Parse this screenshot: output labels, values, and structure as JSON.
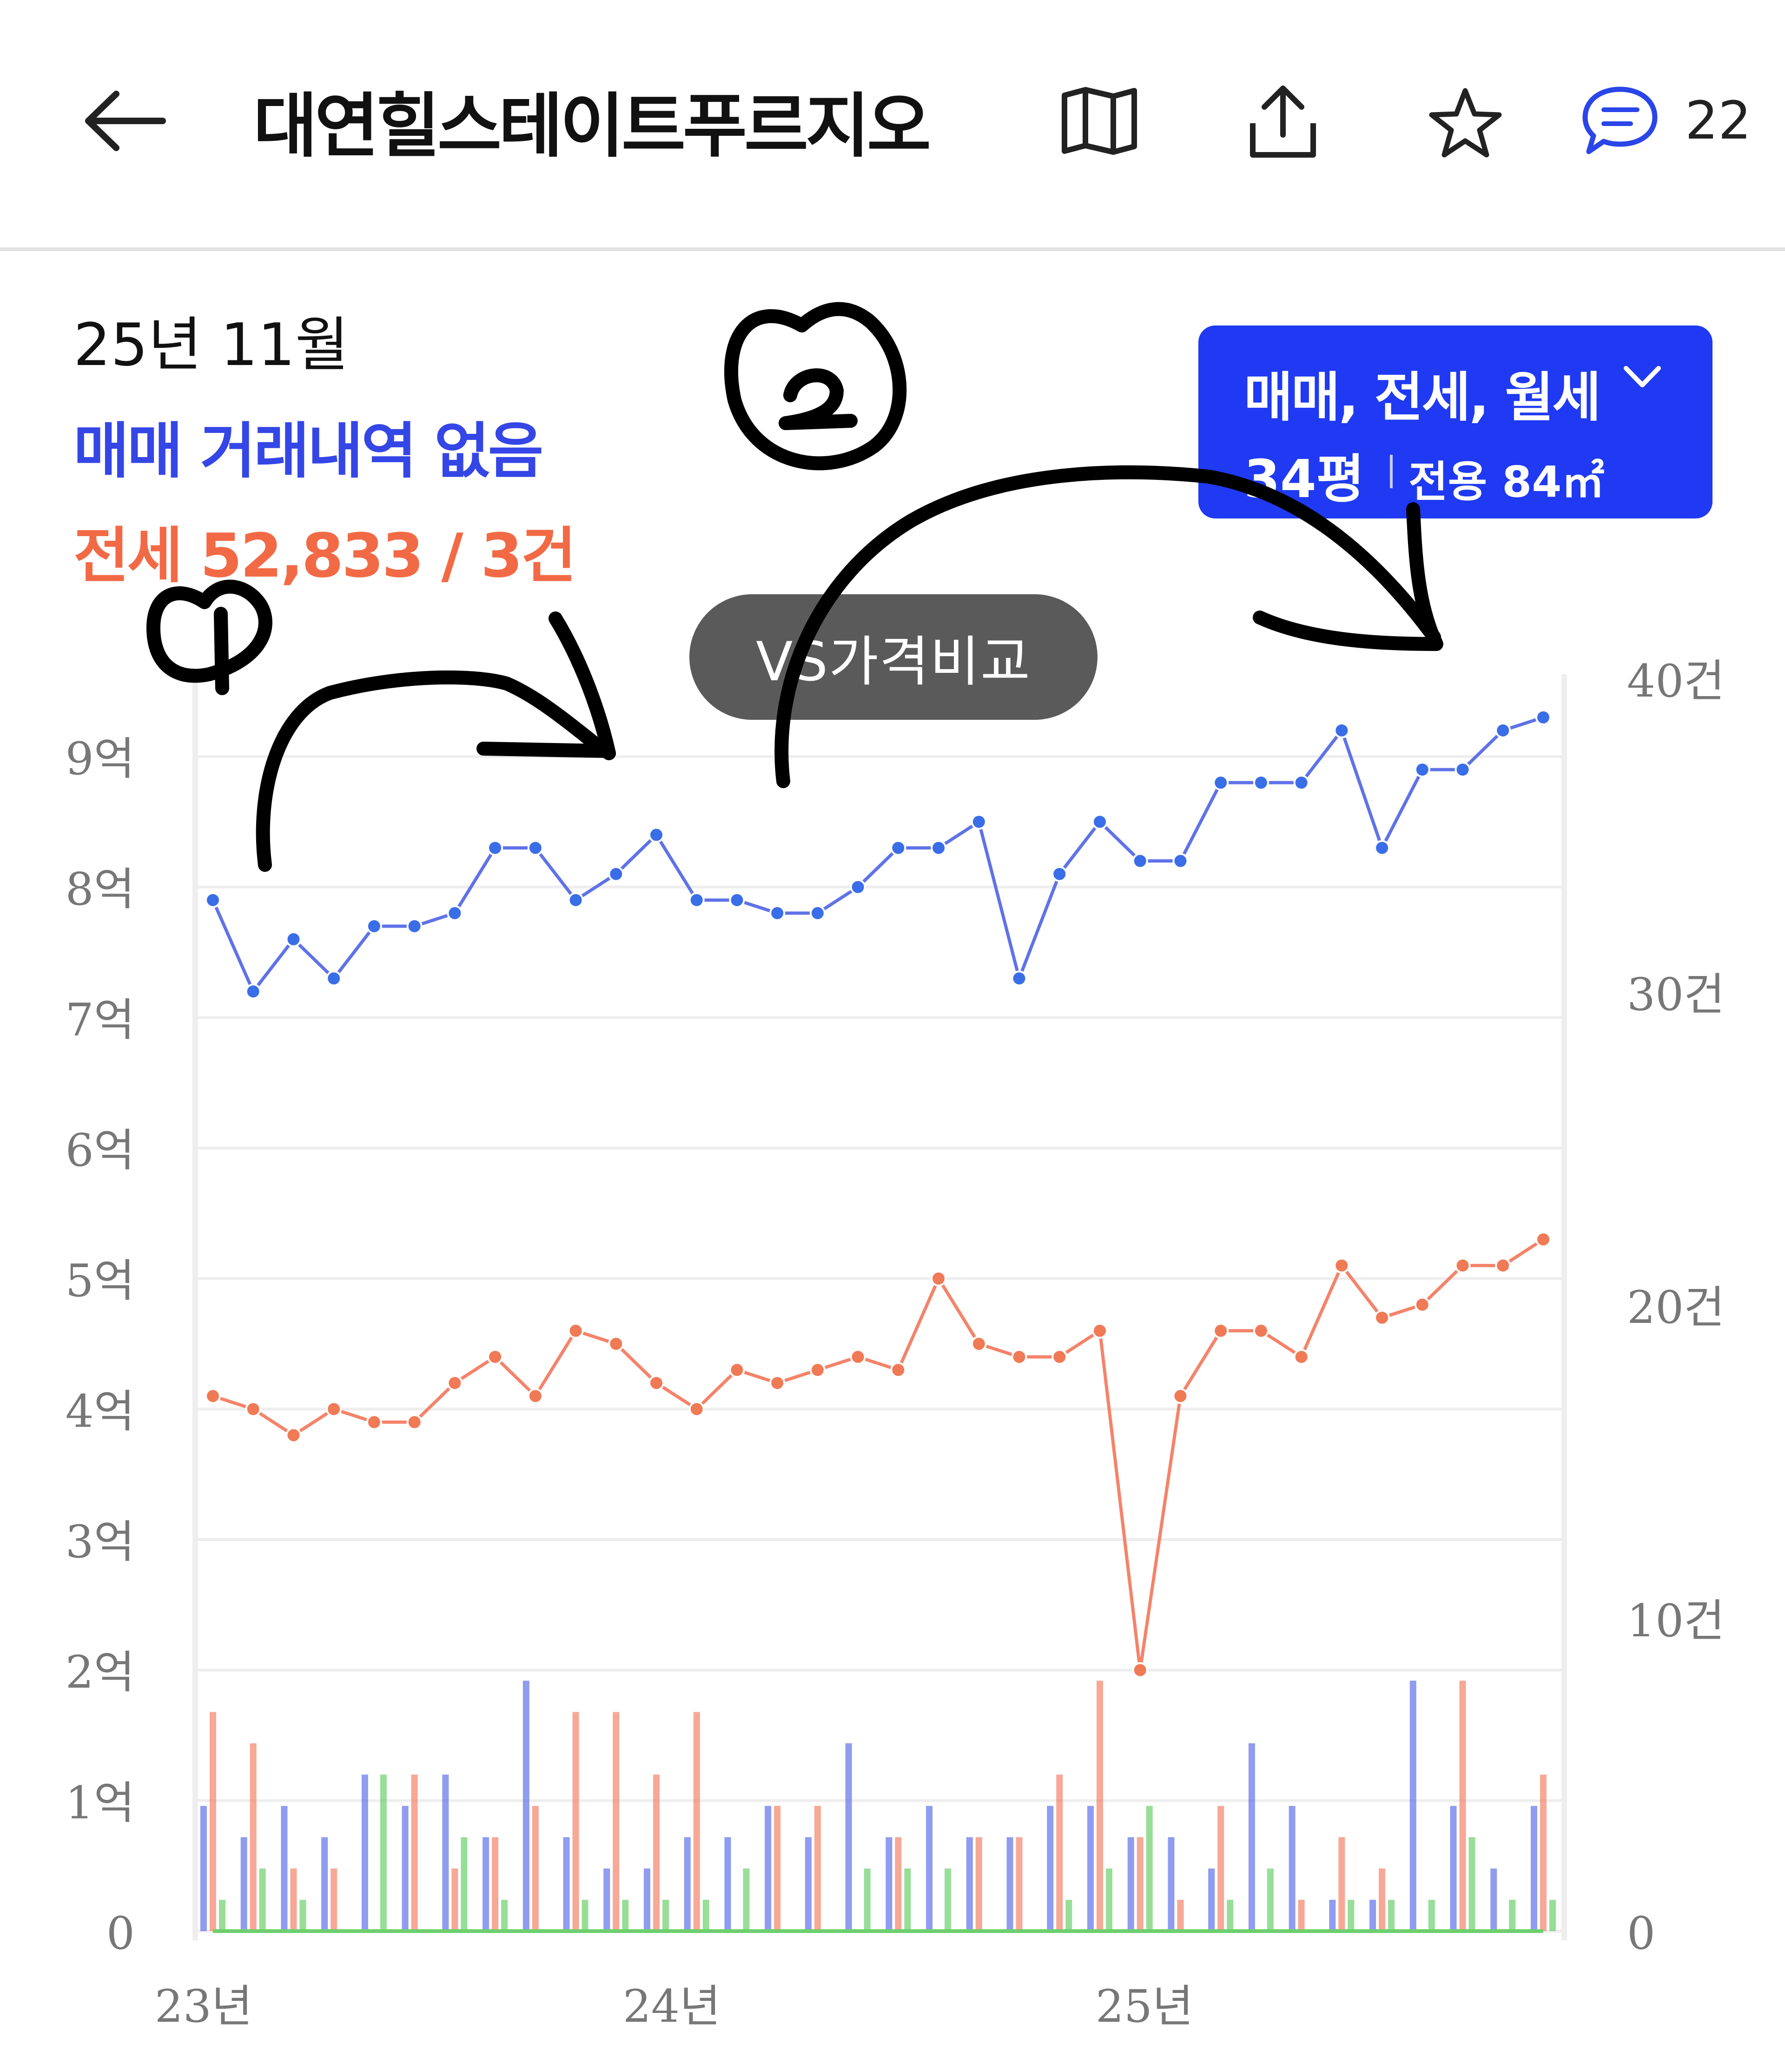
{
  "header": {
    "title": "대연힐스테이트푸르지오",
    "comment_count": "22",
    "icons": [
      "back-arrow-icon",
      "map-icon",
      "share-icon",
      "star-icon",
      "comment-icon"
    ]
  },
  "summary": {
    "date": "25년 11월",
    "sale_text": "매매 거래내역 없음",
    "jeonse_text": "전세 52,833 / 3건"
  },
  "filter": {
    "types": "매매, 전세, 월세",
    "size": "34평",
    "area": "전용 84㎡"
  },
  "vs_button": "VS가격비교",
  "annotations": [
    "①",
    "②"
  ],
  "colors": {
    "accent": "#1f3af2",
    "sale": "#5f72e8",
    "jeonse": "#f4836a",
    "monthly": "#6cd06c"
  },
  "chart_data": {
    "type": "line",
    "x_tick_labels": [
      "23년",
      "24년",
      "25년"
    ],
    "y_left_ticks": [
      "0",
      "1억",
      "2억",
      "3억",
      "4억",
      "5억",
      "6억",
      "7억",
      "8억",
      "9억"
    ],
    "y_right_ticks": [
      "0",
      "10건",
      "20건",
      "30건",
      "40건"
    ],
    "ylim_left": [
      0,
      10
    ],
    "ylim_right": [
      0,
      40
    ],
    "grid": true,
    "series": [
      {
        "unit": "억",
        "values": [
          7.9,
          7.2,
          7.6,
          7.3,
          7.7,
          7.7,
          7.8,
          8.3,
          8.3,
          7.9,
          8.1,
          8.4,
          7.9,
          7.9,
          7.8,
          7.8,
          8.0,
          8.3,
          8.3,
          8.5,
          7.3,
          8.1,
          8.5,
          8.2,
          8.2,
          8.8,
          8.8,
          8.8,
          9.2,
          8.3,
          8.9,
          8.9,
          9.2,
          9.3
        ],
        "x_index": [
          0,
          1,
          2,
          3,
          4,
          5,
          6,
          7,
          8,
          9,
          10,
          11,
          12,
          13,
          14,
          15,
          16,
          17,
          18,
          19,
          20,
          21,
          22,
          23,
          24,
          25,
          26,
          27,
          28,
          29,
          30,
          31,
          32,
          33
        ]
      },
      {
        "unit": "억",
        "values": [
          4.1,
          4.0,
          3.8,
          4.0,
          3.9,
          3.9,
          4.2,
          4.4,
          4.1,
          4.6,
          4.5,
          4.2,
          4.0,
          4.3,
          4.2,
          4.3,
          4.4,
          4.3,
          5.0,
          4.5,
          4.4,
          4.4,
          4.6,
          2.0,
          4.1,
          4.6,
          4.6,
          4.4,
          5.1,
          4.7,
          4.8,
          5.1,
          5.1,
          5.3
        ],
        "x_index": [
          0,
          1,
          2,
          3,
          4,
          5,
          6,
          7,
          8,
          9,
          10,
          11,
          12,
          13,
          14,
          15,
          16,
          17,
          18,
          19,
          20,
          21,
          22,
          23,
          24,
          25,
          26,
          27,
          28,
          29,
          30,
          31,
          32,
          33
        ]
      }
    ],
    "volume_series": [
      {
        "color": "sale",
        "values": [
          4,
          3,
          4,
          3,
          5,
          4,
          5,
          3,
          8,
          3,
          2,
          2,
          3,
          3,
          4,
          3,
          6,
          3,
          4,
          3,
          3,
          4,
          4,
          3,
          3,
          2,
          6,
          4,
          1,
          1,
          8,
          4,
          2,
          4
        ]
      },
      {
        "color": "jeonse",
        "values": [
          7,
          6,
          2,
          2,
          0,
          5,
          2,
          3,
          4,
          7,
          7,
          5,
          7,
          0,
          4,
          4,
          0,
          3,
          0,
          3,
          3,
          5,
          8,
          3,
          1,
          4,
          0,
          1,
          3,
          2,
          0,
          8,
          0,
          5
        ]
      },
      {
        "color": "monthly",
        "values": [
          1,
          2,
          1,
          0,
          5,
          0,
          3,
          1,
          0,
          1,
          1,
          1,
          1,
          2,
          0,
          0,
          2,
          2,
          2,
          0,
          0,
          1,
          2,
          4,
          0,
          1,
          2,
          0,
          1,
          1,
          1,
          3,
          1,
          1
        ]
      }
    ]
  }
}
